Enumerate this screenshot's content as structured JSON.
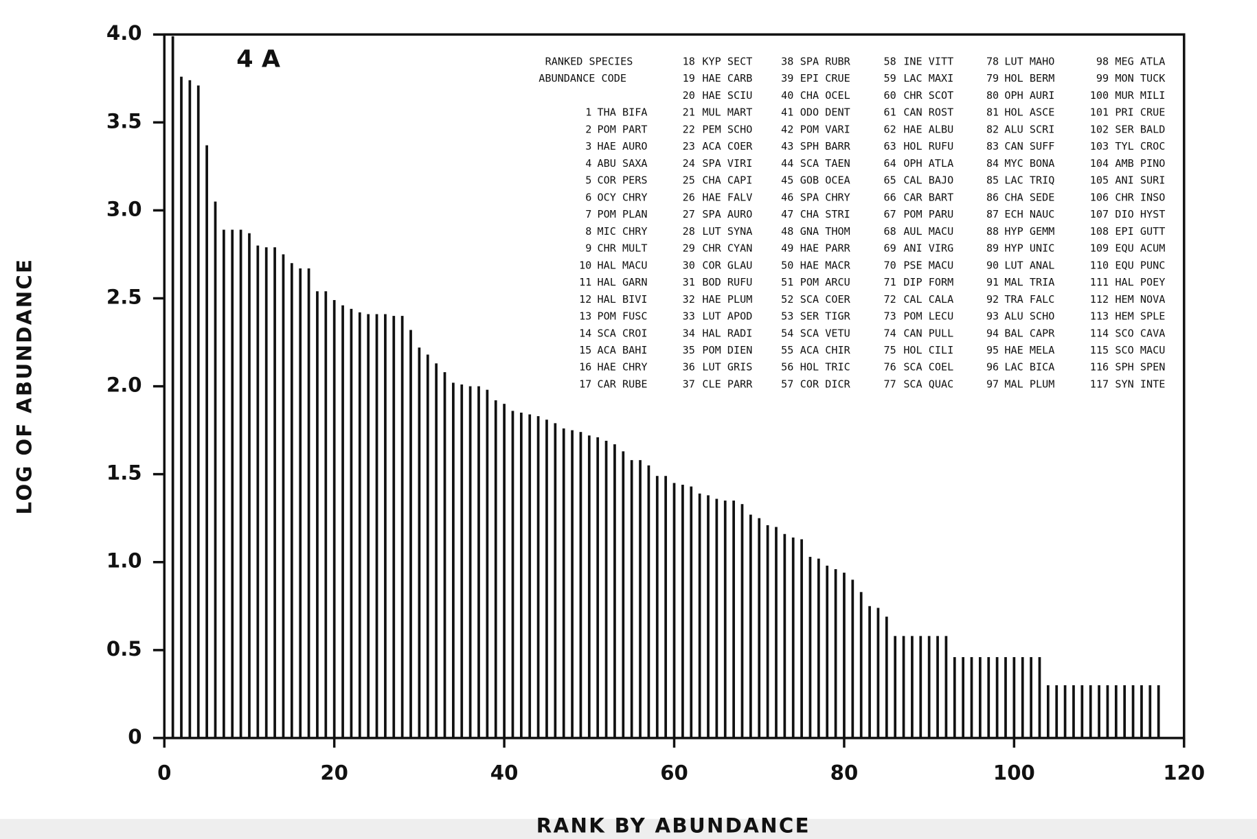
{
  "chart_data": {
    "type": "bar",
    "title": "4 A",
    "xlabel": "RANK BY ABUNDANCE",
    "ylabel": "LOG OF ABUNDANCE",
    "color": "#111111",
    "x": [
      1,
      2,
      3,
      4,
      5,
      6,
      7,
      8,
      9,
      10,
      11,
      12,
      13,
      14,
      15,
      16,
      17,
      18,
      19,
      20,
      21,
      22,
      23,
      24,
      25,
      26,
      27,
      28,
      29,
      30,
      31,
      32,
      33,
      34,
      35,
      36,
      37,
      38,
      39,
      40,
      41,
      42,
      43,
      44,
      45,
      46,
      47,
      48,
      49,
      50,
      51,
      52,
      53,
      54,
      55,
      56,
      57,
      58,
      59,
      60,
      61,
      62,
      63,
      64,
      65,
      66,
      67,
      68,
      69,
      70,
      71,
      72,
      73,
      74,
      75,
      76,
      77,
      78,
      79,
      80,
      81,
      82,
      83,
      84,
      85,
      86,
      87,
      88,
      89,
      90,
      91,
      92,
      93,
      94,
      95,
      96,
      97,
      98,
      99,
      100,
      101,
      102,
      103,
      104,
      105,
      106,
      107,
      108,
      109,
      110,
      111,
      112,
      113,
      114,
      115,
      116,
      117
    ],
    "values": [
      3.99,
      3.76,
      3.74,
      3.71,
      3.37,
      3.05,
      2.89,
      2.89,
      2.89,
      2.87,
      2.8,
      2.79,
      2.79,
      2.75,
      2.7,
      2.67,
      2.67,
      2.54,
      2.54,
      2.49,
      2.46,
      2.44,
      2.42,
      2.41,
      2.41,
      2.41,
      2.4,
      2.4,
      2.32,
      2.22,
      2.18,
      2.13,
      2.08,
      2.02,
      2.01,
      2.0,
      2.0,
      1.98,
      1.92,
      1.9,
      1.86,
      1.85,
      1.84,
      1.83,
      1.81,
      1.79,
      1.76,
      1.75,
      1.74,
      1.72,
      1.71,
      1.69,
      1.67,
      1.63,
      1.58,
      1.58,
      1.55,
      1.49,
      1.49,
      1.45,
      1.44,
      1.43,
      1.39,
      1.38,
      1.36,
      1.35,
      1.35,
      1.33,
      1.27,
      1.25,
      1.21,
      1.2,
      1.16,
      1.14,
      1.13,
      1.03,
      1.02,
      0.98,
      0.96,
      0.94,
      0.9,
      0.83,
      0.75,
      0.74,
      0.69,
      0.58,
      0.58,
      0.58,
      0.58,
      0.58,
      0.58,
      0.58,
      0.46,
      0.46,
      0.46,
      0.46,
      0.46,
      0.46,
      0.46,
      0.46,
      0.46,
      0.46,
      0.46,
      0.3,
      0.3,
      0.3,
      0.3,
      0.3,
      0.3,
      0.3,
      0.3,
      0.3,
      0.3,
      0.3,
      0.3,
      0.3,
      0.3
    ],
    "xlim": [
      0,
      120
    ],
    "xticks": [
      0,
      20,
      40,
      60,
      80,
      100,
      120
    ],
    "ylim": [
      0,
      4
    ],
    "yticks": [
      0,
      0.5,
      {
        "value": 1,
        "label": "1.0"
      },
      1.5,
      {
        "value": 2,
        "label": "2.0"
      },
      2.5,
      {
        "value": 3,
        "label": "3.0"
      },
      3.5,
      {
        "value": 4,
        "label": "4.0"
      }
    ],
    "legend_header": [
      "RANKED  SPECIES",
      "ABUNDANCE  CODE"
    ],
    "species": [
      {
        "rank": 1,
        "code": "THA BIFA"
      },
      {
        "rank": 2,
        "code": "POM PART"
      },
      {
        "rank": 3,
        "code": "HAE AURO"
      },
      {
        "rank": 4,
        "code": "ABU SAXA"
      },
      {
        "rank": 5,
        "code": "COR PERS"
      },
      {
        "rank": 6,
        "code": "OCY CHRY"
      },
      {
        "rank": 7,
        "code": "POM PLAN"
      },
      {
        "rank": 8,
        "code": "MIC CHRY"
      },
      {
        "rank": 9,
        "code": "CHR MULT"
      },
      {
        "rank": 10,
        "code": "HAL MACU"
      },
      {
        "rank": 11,
        "code": "HAL GARN"
      },
      {
        "rank": 12,
        "code": "HAL BIVI"
      },
      {
        "rank": 13,
        "code": "POM FUSC"
      },
      {
        "rank": 14,
        "code": "SCA CROI"
      },
      {
        "rank": 15,
        "code": "ACA BAHI"
      },
      {
        "rank": 16,
        "code": "HAE CHRY"
      },
      {
        "rank": 17,
        "code": "CAR RUBE"
      },
      {
        "rank": 18,
        "code": "KYP SECT"
      },
      {
        "rank": 19,
        "code": "HAE CARB"
      },
      {
        "rank": 20,
        "code": "HAE SCIU"
      },
      {
        "rank": 21,
        "code": "MUL MART"
      },
      {
        "rank": 22,
        "code": "PEM SCHO"
      },
      {
        "rank": 23,
        "code": "ACA COER"
      },
      {
        "rank": 24,
        "code": "SPA VIRI"
      },
      {
        "rank": 25,
        "code": "CHA CAPI"
      },
      {
        "rank": 26,
        "code": "HAE FALV"
      },
      {
        "rank": 27,
        "code": "SPA AURO"
      },
      {
        "rank": 28,
        "code": "LUT SYNA"
      },
      {
        "rank": 29,
        "code": "CHR CYAN"
      },
      {
        "rank": 30,
        "code": "COR GLAU"
      },
      {
        "rank": 31,
        "code": "BOD RUFU"
      },
      {
        "rank": 32,
        "code": "HAE PLUM"
      },
      {
        "rank": 33,
        "code": "LUT APOD"
      },
      {
        "rank": 34,
        "code": "HAL RADI"
      },
      {
        "rank": 35,
        "code": "POM DIEN"
      },
      {
        "rank": 36,
        "code": "LUT GRIS"
      },
      {
        "rank": 37,
        "code": "CLE PARR"
      },
      {
        "rank": 38,
        "code": "SPA RUBR"
      },
      {
        "rank": 39,
        "code": "EPI CRUE"
      },
      {
        "rank": 40,
        "code": "CHA OCEL"
      },
      {
        "rank": 41,
        "code": "ODO DENT"
      },
      {
        "rank": 42,
        "code": "POM VARI"
      },
      {
        "rank": 43,
        "code": "SPH BARR"
      },
      {
        "rank": 44,
        "code": "SCA TAEN"
      },
      {
        "rank": 45,
        "code": "GOB OCEA"
      },
      {
        "rank": 46,
        "code": "SPA CHRY"
      },
      {
        "rank": 47,
        "code": "CHA STRI"
      },
      {
        "rank": 48,
        "code": "GNA THOM"
      },
      {
        "rank": 49,
        "code": "HAE PARR"
      },
      {
        "rank": 50,
        "code": "HAE MACR"
      },
      {
        "rank": 51,
        "code": "POM ARCU"
      },
      {
        "rank": 52,
        "code": "SCA COER"
      },
      {
        "rank": 53,
        "code": "SER TIGR"
      },
      {
        "rank": 54,
        "code": "SCA VETU"
      },
      {
        "rank": 55,
        "code": "ACA CHIR"
      },
      {
        "rank": 56,
        "code": "HOL TRIC"
      },
      {
        "rank": 57,
        "code": "COR DICR"
      },
      {
        "rank": 58,
        "code": "INE VITT"
      },
      {
        "rank": 59,
        "code": "LAC MAXI"
      },
      {
        "rank": 60,
        "code": "CHR SCOT"
      },
      {
        "rank": 61,
        "code": "CAN ROST"
      },
      {
        "rank": 62,
        "code": "HAE ALBU"
      },
      {
        "rank": 63,
        "code": "HOL RUFU"
      },
      {
        "rank": 64,
        "code": "OPH ATLA"
      },
      {
        "rank": 65,
        "code": "CAL BAJO"
      },
      {
        "rank": 66,
        "code": "CAR BART"
      },
      {
        "rank": 67,
        "code": "POM PARU"
      },
      {
        "rank": 68,
        "code": "AUL MACU"
      },
      {
        "rank": 69,
        "code": "ANI VIRG"
      },
      {
        "rank": 70,
        "code": "PSE MACU"
      },
      {
        "rank": 71,
        "code": "DIP FORM"
      },
      {
        "rank": 72,
        "code": "CAL CALA"
      },
      {
        "rank": 73,
        "code": "POM LECU"
      },
      {
        "rank": 74,
        "code": "CAN PULL"
      },
      {
        "rank": 75,
        "code": "HOL CILI"
      },
      {
        "rank": 76,
        "code": "SCA COEL"
      },
      {
        "rank": 77,
        "code": "SCA QUAC"
      },
      {
        "rank": 78,
        "code": "LUT MAHO"
      },
      {
        "rank": 79,
        "code": "HOL BERM"
      },
      {
        "rank": 80,
        "code": "OPH AURI"
      },
      {
        "rank": 81,
        "code": "HOL ASCE"
      },
      {
        "rank": 82,
        "code": "ALU SCRI"
      },
      {
        "rank": 83,
        "code": "CAN SUFF"
      },
      {
        "rank": 84,
        "code": "MYC BONA"
      },
      {
        "rank": 85,
        "code": "LAC TRIQ"
      },
      {
        "rank": 86,
        "code": "CHA SEDE"
      },
      {
        "rank": 87,
        "code": "ECH NAUC"
      },
      {
        "rank": 88,
        "code": "HYP GEMM"
      },
      {
        "rank": 89,
        "code": "HYP UNIC"
      },
      {
        "rank": 90,
        "code": "LUT ANAL"
      },
      {
        "rank": 91,
        "code": "MAL TRIA"
      },
      {
        "rank": 92,
        "code": "TRA FALC"
      },
      {
        "rank": 93,
        "code": "ALU SCHO"
      },
      {
        "rank": 94,
        "code": "BAL CAPR"
      },
      {
        "rank": 95,
        "code": "HAE MELA"
      },
      {
        "rank": 96,
        "code": "LAC BICA"
      },
      {
        "rank": 97,
        "code": "MAL PLUM"
      },
      {
        "rank": 98,
        "code": "MEG ATLA"
      },
      {
        "rank": 99,
        "code": "MON TUCK"
      },
      {
        "rank": 100,
        "code": "MUR MILI"
      },
      {
        "rank": 101,
        "code": "PRI CRUE"
      },
      {
        "rank": 102,
        "code": "SER BALD"
      },
      {
        "rank": 103,
        "code": "TYL CROC"
      },
      {
        "rank": 104,
        "code": "AMB PINO"
      },
      {
        "rank": 105,
        "code": "ANI SURI"
      },
      {
        "rank": 106,
        "code": "CHR INSO"
      },
      {
        "rank": 107,
        "code": "DIO HYST"
      },
      {
        "rank": 108,
        "code": "EPI GUTT"
      },
      {
        "rank": 109,
        "code": "EQU ACUM"
      },
      {
        "rank": 110,
        "code": "EQU PUNC"
      },
      {
        "rank": 111,
        "code": "HAL POEY"
      },
      {
        "rank": 112,
        "code": "HEM NOVA"
      },
      {
        "rank": 113,
        "code": "HEM SPLE"
      },
      {
        "rank": 114,
        "code": "SCO CAVA"
      },
      {
        "rank": 115,
        "code": "SCO MACU"
      },
      {
        "rank": 116,
        "code": "SPH SPEN"
      },
      {
        "rank": 117,
        "code": "SYN INTE"
      }
    ]
  }
}
